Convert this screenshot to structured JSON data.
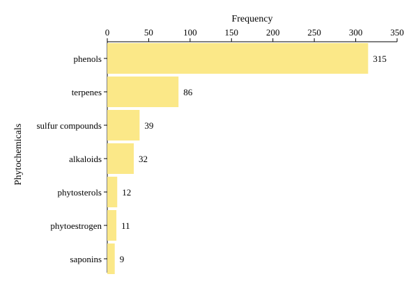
{
  "chart_data": {
    "type": "bar",
    "orientation": "horizontal",
    "title": "",
    "xlabel": "Frequency",
    "ylabel": "Phytochemicals",
    "x_axis_position": "top",
    "xlim": [
      0,
      350
    ],
    "x_ticks": [
      "0",
      "50",
      "100",
      "150",
      "200",
      "250",
      "300",
      "350"
    ],
    "categories": [
      "phenols",
      "terpenes",
      "sulfur compounds",
      "alkaloids",
      "phytosterols",
      "phytoestrogen",
      "saponins"
    ],
    "values": [
      315,
      86,
      39,
      32,
      12,
      11,
      9
    ],
    "data_labels": [
      "315",
      "86",
      "39",
      "32",
      "12",
      "11",
      "9"
    ],
    "grid": false,
    "legend": "none",
    "colors": {
      "bar": "#fbe888",
      "axis": "#000000"
    }
  }
}
